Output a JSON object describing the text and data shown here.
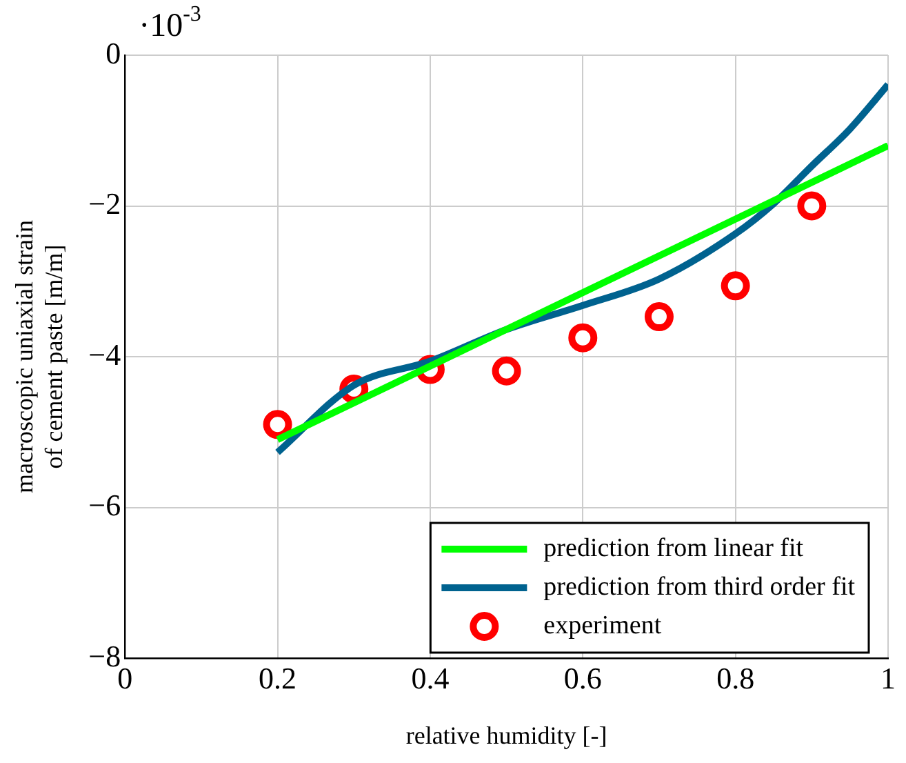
{
  "chart_data": {
    "type": "line",
    "xlabel": "relative humidity [-]",
    "ylabel": "macroscopic uniaxial strain of cement paste [m/m]",
    "annotations": [
      "·10$^{-3}$"
    ],
    "xlim": [
      0,
      1
    ],
    "xticks": [
      0,
      0.2,
      0.4,
      0.6,
      0.8,
      1
    ],
    "ylim": [
      -8,
      0
    ],
    "yticks": [
      -8,
      -6,
      -4,
      -2,
      0
    ],
    "grid": true,
    "legend": "bottom right",
    "series": [
      {
        "name": "prediction from linear fit",
        "color": "#00ff00",
        "marker": "none",
        "x": [
          0.2,
          1.0
        ],
        "values": [
          -5.1,
          -1.2
        ]
      },
      {
        "name": "prediction from third order fit",
        "color": "#00628f",
        "marker": "none",
        "x": [
          0.2,
          0.3,
          0.4,
          0.5,
          0.6,
          0.7,
          0.8,
          0.85,
          0.9,
          0.95,
          1.0
        ],
        "values": [
          -5.27,
          -4.38,
          -4.06,
          -3.64,
          -3.32,
          -2.97,
          -2.37,
          -1.97,
          -1.47,
          -0.98,
          -0.39
        ]
      },
      {
        "name": "experiment",
        "color": "#ff0000",
        "type": "scatter",
        "marker": "circle",
        "x": [
          0.2,
          0.3,
          0.4,
          0.5,
          0.6,
          0.7,
          0.8,
          0.9
        ],
        "values": [
          -4.9,
          -4.43,
          -4.17,
          -4.19,
          -3.75,
          -3.47,
          -3.06,
          -2.0
        ]
      }
    ]
  }
}
